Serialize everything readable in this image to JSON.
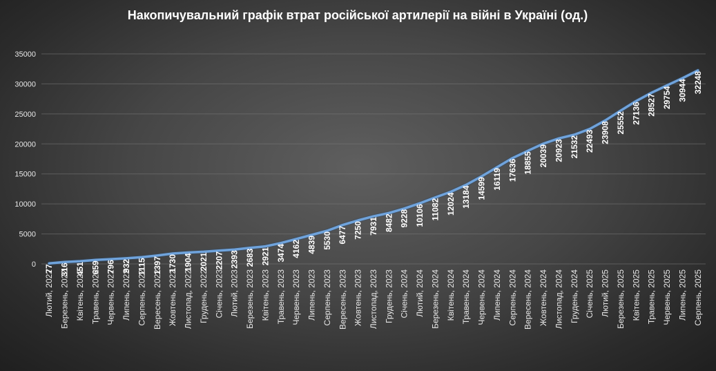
{
  "chart_data": {
    "type": "line",
    "title": "Накопичувальний  графік  втрат  російської  артилерії  на  війні  в  Україні  (од.)",
    "xlabel": "",
    "ylabel": "",
    "ylim": [
      0,
      35000
    ],
    "yticks": [
      0,
      5000,
      10000,
      15000,
      20000,
      25000,
      30000,
      35000
    ],
    "grid": true,
    "legend": "none",
    "line_color": "#6fa3dc",
    "categories": [
      "Лютий, 2022",
      "Березень, 2022",
      "Квітень, 2022",
      "Травень, 2022",
      "Червень, 2022",
      "Липень, 2022",
      "Серпень, 2022",
      "Вересень, 2022",
      "Жовтень, 2022",
      "Листопад, 2022",
      "Грудень, 2022",
      "Січень, 2023",
      "Лютий, 2023",
      "Березень, 2023",
      "Квітень, 2023",
      "Травень, 2023",
      "Червень, 2023",
      "Липень, 2023",
      "Серпень, 2023",
      "Вересень, 2023",
      "Жовтень, 2023",
      "Листопад, 2023",
      "Грудень, 2023",
      "Січень, 2024",
      "Лютий, 2024",
      "Березень, 2024",
      "Квітень, 2024",
      "Травень, 2024",
      "Червень, 2024",
      "Липень, 2024",
      "Серпень, 2024",
      "Вересень, 2024",
      "Жовтень, 2024",
      "Листопад, 2024",
      "Грудень, 2024",
      "Січень, 2025",
      "Лютий, 2025",
      "Березень, 2025",
      "Квітень, 2025",
      "Травень, 2025",
      "Червень, 2025",
      "Липень, 2025",
      "Серпень, 2025"
    ],
    "values": [
      77,
      316,
      451,
      659,
      796,
      932,
      1115,
      1397,
      1730,
      1904,
      2021,
      2207,
      2393,
      2683,
      2921,
      3474,
      4162,
      4839,
      5530,
      6477,
      7250,
      7931,
      8482,
      9228,
      10106,
      11082,
      12024,
      13184,
      14599,
      16119,
      17636,
      18855,
      20039,
      20923,
      21532,
      22493,
      23908,
      25552,
      27136,
      28527,
      29754,
      30944,
      32248
    ]
  }
}
